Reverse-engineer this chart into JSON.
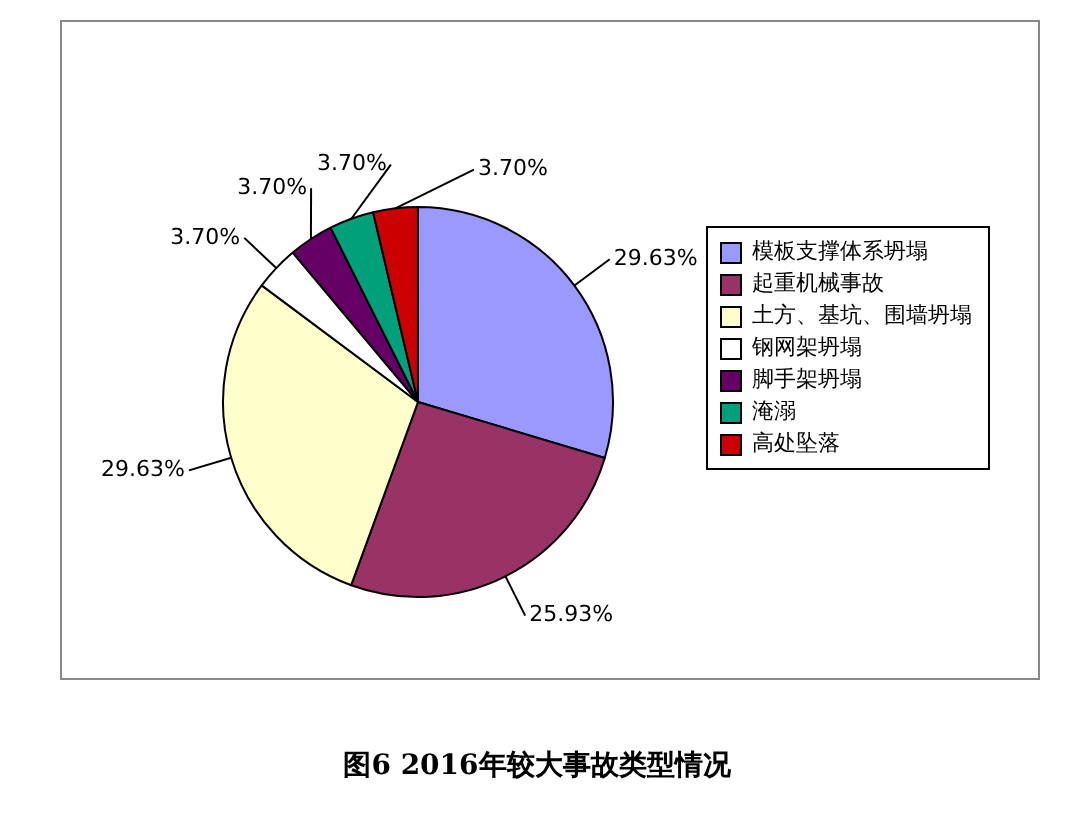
{
  "chart_data": {
    "type": "pie",
    "title": "图6  2016年较大事故类型情况",
    "categories": [
      "模板支撑体系坍塌",
      "起重机械事故",
      "土方、基坑、围墙坍塌",
      "钢网架坍塌",
      "脚手架坍塌",
      "淹溺",
      "高处坠落"
    ],
    "values": [
      29.63,
      25.93,
      29.63,
      3.7,
      3.7,
      3.7,
      3.7
    ],
    "value_labels": [
      "29.63%",
      "25.93%",
      "29.63%",
      "3.70%",
      "3.70%",
      "3.70%",
      "3.70%"
    ],
    "colors": [
      "#9999ff",
      "#993366",
      "#ffffcc",
      "#ffffff",
      "#660066",
      "#00a07a",
      "#cc0000"
    ],
    "legend": "right"
  }
}
